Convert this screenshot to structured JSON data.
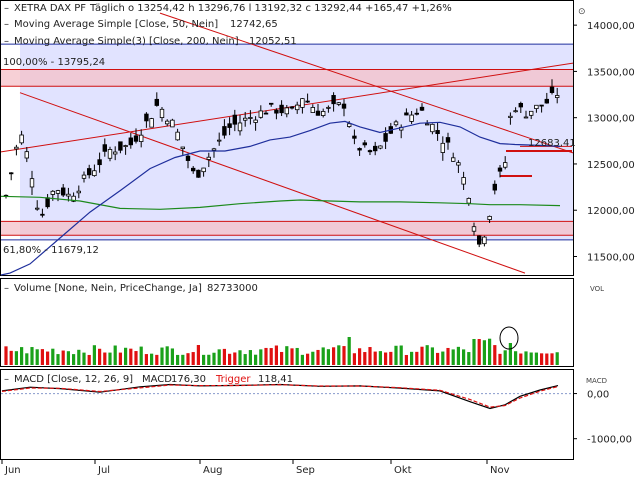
{
  "header": {
    "main_line1": "XETRA DAX PF",
    "main_freq": "Täglich",
    "main_ohlc": "o 13254,42  h 13296,76  l 13192,32  c 13292,44  +165,47  +1,26%",
    "ma50_label": "Moving Average Simple  [Close, 50, Nein]",
    "ma50_value": "12742,65",
    "ma200_label": "Moving Average Simple(3)  [Close, 200, Nein]",
    "ma200_value": "12052,51",
    "volume_label": "Volume  [None, Nein, PriceChange, Ja]",
    "volume_value": "82733000",
    "macd_label": "MACD  [Close, 12, 26, 9]",
    "macd_value_label": "MACD",
    "macd_value": "176,30",
    "trigger_label": "Trigger",
    "trigger_value": "118,41"
  },
  "annotations": {
    "fib_top": "100,00% - 13795,24",
    "fib_bottom": "61,80% - 11679,12",
    "price_marker": "12683,41"
  },
  "side_labels": {
    "vol": "VOL",
    "macd": "MACD"
  },
  "colors": {
    "up": "#1aa11a",
    "down": "#e01010",
    "ma50": "#1f2f9c",
    "ma200": "#1c8a1c",
    "trend": "#d01010",
    "band": "#c8ccff",
    "hband": "#f4c0c8",
    "macd": "#000000",
    "trigger": "#e01010"
  },
  "chart_data": {
    "type": "candlestick",
    "x_ticks": [
      "Jun",
      "Jul",
      "Aug",
      "Sep",
      "Okt",
      "Nov"
    ],
    "price_axis": {
      "ticks": [
        "11500,00",
        "12000,00",
        "12500,00",
        "13000,00",
        "13500,00",
        "14000,00"
      ],
      "range": [
        11300,
        14250
      ]
    },
    "macd_axis": {
      "ticks": [
        "0,00",
        "-1000,00"
      ],
      "range": [
        -1450,
        500
      ]
    },
    "candles": [],
    "ma50": [
      [
        1,
        11300
      ],
      [
        10,
        11320
      ],
      [
        30,
        11420
      ],
      [
        60,
        11700
      ],
      [
        90,
        11980
      ],
      [
        120,
        12210
      ],
      [
        150,
        12450
      ],
      [
        175,
        12570
      ],
      [
        200,
        12640
      ],
      [
        225,
        12640
      ],
      [
        250,
        12690
      ],
      [
        270,
        12760
      ],
      [
        290,
        12790
      ],
      [
        310,
        12860
      ],
      [
        330,
        12940
      ],
      [
        345,
        12960
      ],
      [
        360,
        12900
      ],
      [
        380,
        12840
      ],
      [
        400,
        12890
      ],
      [
        420,
        12940
      ],
      [
        440,
        12950
      ],
      [
        460,
        12900
      ],
      [
        480,
        12790
      ],
      [
        500,
        12720
      ],
      [
        515,
        12710
      ],
      [
        540,
        12700
      ],
      [
        560,
        12690
      ]
    ],
    "ma200": [
      [
        1,
        12150
      ],
      [
        40,
        12140
      ],
      [
        80,
        12100
      ],
      [
        120,
        12020
      ],
      [
        160,
        12010
      ],
      [
        200,
        12030
      ],
      [
        240,
        12070
      ],
      [
        280,
        12100
      ],
      [
        300,
        12110
      ],
      [
        330,
        12100
      ],
      [
        360,
        12090
      ],
      [
        400,
        12090
      ],
      [
        440,
        12080
      ],
      [
        470,
        12070
      ],
      [
        490,
        12060
      ],
      [
        520,
        12060
      ],
      [
        560,
        12050
      ]
    ]
  }
}
